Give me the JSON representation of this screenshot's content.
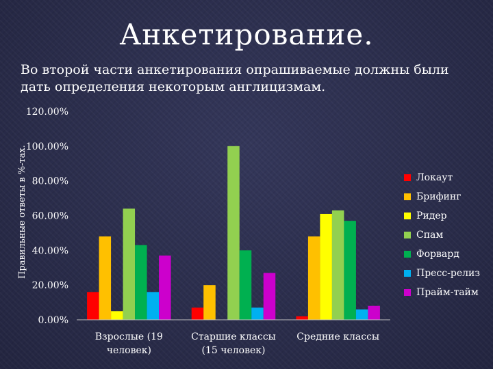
{
  "page": {
    "title": "Анкетирование.",
    "subtitle": "Во второй части анкетирования опрашиваемые должны были дать определения некоторым англицизмам."
  },
  "chart_data": {
    "type": "bar",
    "ylabel": "Правильные ответы в %-тах.",
    "xlabel": "",
    "ylim": [
      0,
      120
    ],
    "yticks": [
      "0.00%",
      "20.00%",
      "40.00%",
      "60.00%",
      "80.00%",
      "100.00%",
      "120.00%"
    ],
    "categories": [
      [
        "Взрослые (19",
        "человек)"
      ],
      [
        "Старшие классы",
        "(15 человек)"
      ],
      [
        "Средние классы"
      ]
    ],
    "legend_position": "right",
    "grid": false,
    "series": [
      {
        "name": "Локаут",
        "color": "#ff0000",
        "values": [
          16,
          7,
          2
        ]
      },
      {
        "name": "Брифинг",
        "color": "#ffc000",
        "values": [
          48,
          20,
          48
        ]
      },
      {
        "name": "Ридер",
        "color": "#ffff00",
        "values": [
          5,
          0,
          61
        ]
      },
      {
        "name": "Спам",
        "color": "#92d050",
        "values": [
          64,
          100,
          63
        ]
      },
      {
        "name": "Форвард",
        "color": "#00b050",
        "values": [
          43,
          40,
          57
        ]
      },
      {
        "name": "Пресс-релиз",
        "color": "#00b0f0",
        "values": [
          16,
          7,
          6
        ]
      },
      {
        "name": "Прайм-тайм",
        "color": "#cc00cc",
        "values": [
          37,
          27,
          8
        ]
      }
    ]
  }
}
